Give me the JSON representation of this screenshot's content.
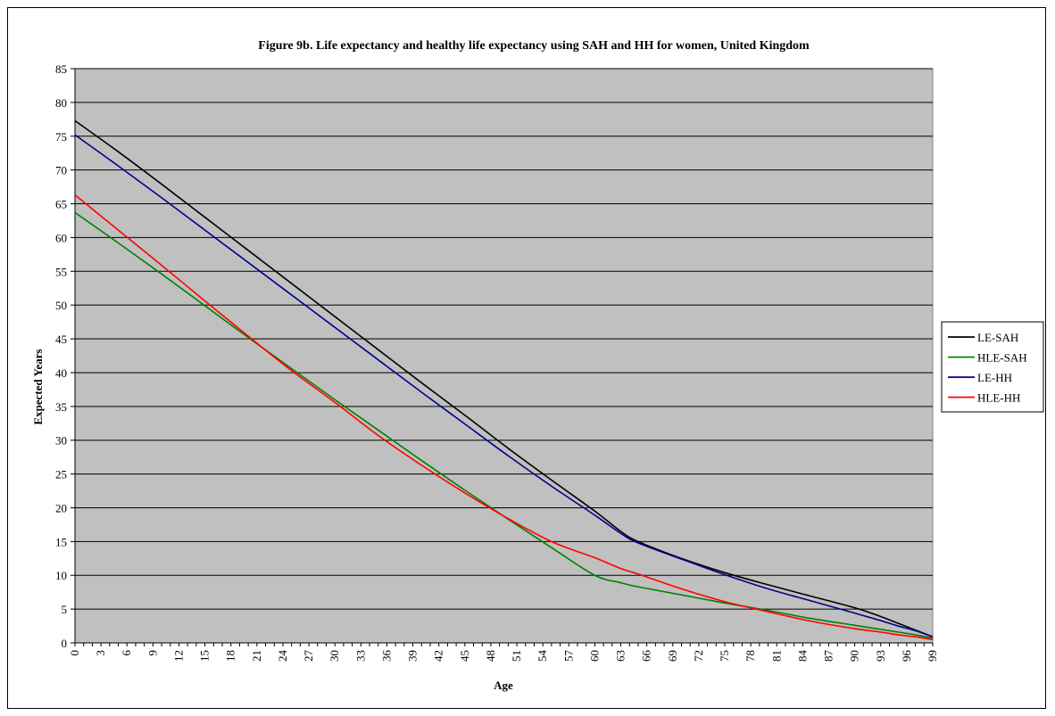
{
  "chart_data": {
    "type": "line",
    "title": "Figure 9b. Life expectancy and healthy life expectancy using SAH and HH for women, United Kingdom",
    "xlabel": "Age",
    "ylabel": "Expected Years",
    "xlim": [
      0,
      99
    ],
    "ylim": [
      0,
      85
    ],
    "x_ticks": [
      0,
      3,
      6,
      9,
      12,
      15,
      18,
      21,
      24,
      27,
      30,
      33,
      36,
      39,
      42,
      45,
      48,
      51,
      54,
      57,
      60,
      63,
      66,
      69,
      72,
      75,
      78,
      81,
      84,
      87,
      90,
      93,
      96,
      99
    ],
    "y_ticks": [
      0,
      5,
      10,
      15,
      20,
      25,
      30,
      35,
      40,
      45,
      50,
      55,
      60,
      65,
      70,
      75,
      80,
      85
    ],
    "grid": "horizontal",
    "plot_background": "#c0c0c0",
    "legend_position": "right",
    "x": [
      0,
      5,
      10,
      15,
      20,
      25,
      30,
      35,
      40,
      45,
      50,
      55,
      60,
      63,
      65,
      70,
      75,
      80,
      85,
      90,
      93,
      95,
      97,
      99
    ],
    "series": [
      {
        "name": "LE-SAH",
        "color": "#000000",
        "values": [
          77.3,
          72.7,
          67.9,
          63.0,
          58.1,
          53.2,
          48.3,
          43.4,
          38.5,
          33.7,
          28.8,
          24.1,
          19.5,
          16.5,
          15.0,
          12.5,
          10.4,
          8.6,
          6.9,
          5.2,
          3.9,
          2.9,
          1.9,
          0.9
        ]
      },
      {
        "name": "HLE-SAH",
        "color": "#008000",
        "values": [
          63.7,
          59.2,
          54.6,
          49.9,
          45.2,
          40.6,
          36.0,
          31.5,
          27.0,
          22.6,
          18.3,
          14.1,
          10.0,
          8.9,
          8.3,
          7.1,
          5.9,
          4.8,
          3.6,
          2.6,
          2.0,
          1.6,
          1.2,
          0.7
        ]
      },
      {
        "name": "LE-HH",
        "color": "#00008b",
        "values": [
          75.2,
          70.6,
          65.9,
          61.1,
          56.3,
          51.5,
          46.7,
          41.9,
          37.1,
          32.4,
          27.7,
          23.2,
          18.9,
          16.2,
          14.8,
          12.4,
          10.1,
          8.0,
          6.2,
          4.4,
          3.3,
          2.5,
          1.8,
          0.9
        ]
      },
      {
        "name": "HLE-HH",
        "color": "#ff0000",
        "values": [
          66.3,
          61.1,
          55.9,
          50.6,
          45.4,
          40.3,
          35.6,
          30.7,
          26.3,
          22.2,
          18.4,
          15.0,
          12.6,
          11.0,
          10.2,
          8.0,
          6.1,
          4.6,
          3.2,
          2.1,
          1.6,
          1.2,
          0.9,
          0.5
        ]
      }
    ]
  }
}
